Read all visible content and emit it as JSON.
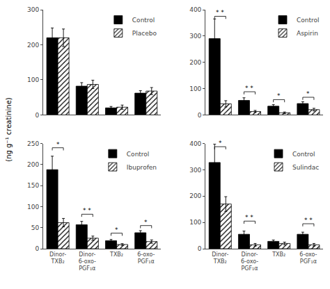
{
  "ylabel": "(ng g⁻¹ creatinine)",
  "chart_data": [
    {
      "type": "bar",
      "categories": [
        "Dinor-\nTXB₂",
        "Dinor-\n6-oxo-\nPGF₁α",
        "TXB₂",
        "6-oxo-\nPGF₁α"
      ],
      "series": [
        {
          "name": "Control",
          "color": "black",
          "values": [
            220,
            82,
            20,
            62
          ],
          "errors": [
            28,
            10,
            4,
            7
          ]
        },
        {
          "name": "Placebo",
          "color": "white",
          "values": [
            220,
            87,
            22,
            68
          ],
          "errors": [
            25,
            12,
            6,
            10
          ]
        }
      ],
      "ylim": [
        0,
        300
      ],
      "yticks": [
        0,
        100,
        200,
        300
      ],
      "grid": false,
      "legend": "upper right",
      "tick_labels": "y",
      "annotations": []
    },
    {
      "type": "bar",
      "categories": [
        "Dinor-\nTXB₂",
        "Dinor-\n6-oxo-\nPGF₁α",
        "TXB₂",
        "6-oxo-\nPGF₁α"
      ],
      "series": [
        {
          "name": "Control",
          "color": "black",
          "values": [
            290,
            55,
            33,
            43
          ],
          "errors": [
            75,
            10,
            6,
            7
          ]
        },
        {
          "name": "Aspirin",
          "color": "white",
          "values": [
            42,
            13,
            8,
            20
          ],
          "errors": [
            12,
            4,
            3,
            5
          ]
        }
      ],
      "ylim": [
        0,
        400
      ],
      "yticks": [
        0,
        100,
        200,
        300,
        400
      ],
      "grid": false,
      "legend": "upper right",
      "tick_labels": "y",
      "annotations": [
        {
          "category": "Dinor-\nTXB₂",
          "y": 375,
          "text": "* *"
        },
        {
          "category": "Dinor-\n6-oxo-\nPGF₁α",
          "y": 88,
          "text": "* *"
        },
        {
          "category": "TXB₂",
          "y": 58,
          "text": "*"
        },
        {
          "category": "6-oxo-\nPGF₁α",
          "y": 67,
          "text": "*"
        }
      ]
    },
    {
      "type": "bar",
      "categories": [
        "Dinor-\nTXB₂",
        "Dinor-\n6-oxo-\nPGF₁α",
        "TXB₂",
        "6-oxo-\nPGF₁α"
      ],
      "series": [
        {
          "name": "Control",
          "color": "black",
          "values": [
            188,
            57,
            19,
            38
          ],
          "errors": [
            32,
            8,
            3,
            5
          ]
        },
        {
          "name": "Ibuprofen",
          "color": "white",
          "values": [
            62,
            25,
            10,
            17
          ],
          "errors": [
            10,
            5,
            2,
            4
          ]
        }
      ],
      "ylim": [
        0,
        250
      ],
      "yticks": [
        0,
        50,
        100,
        150,
        200,
        250
      ],
      "grid": false,
      "legend": "upper right",
      "annotations": [
        {
          "category": "Dinor-\nTXB₂",
          "y": 240,
          "text": "*"
        },
        {
          "category": "Dinor-\n6-oxo-\nPGF₁α",
          "y": 82,
          "text": "* *"
        },
        {
          "category": "TXB₂",
          "y": 37,
          "text": "*"
        },
        {
          "category": "6-oxo-\nPGF₁α",
          "y": 55,
          "text": "*"
        }
      ]
    },
    {
      "type": "bar",
      "categories": [
        "Dinor-\nTXB₂",
        "Dinor-\n6-oxo-\nPGF₁α",
        "TXB₂",
        "6-oxo-\nPGF₁α"
      ],
      "series": [
        {
          "name": "Control",
          "color": "black",
          "values": [
            328,
            55,
            28,
            55
          ],
          "errors": [
            70,
            12,
            5,
            8
          ]
        },
        {
          "name": "Sulindac",
          "color": "white",
          "values": [
            170,
            15,
            20,
            15
          ],
          "errors": [
            28,
            5,
            5,
            5
          ]
        }
      ],
      "ylim": [
        0,
        400
      ],
      "yticks": [
        0,
        100,
        200,
        300,
        400
      ],
      "grid": false,
      "legend": "upper right",
      "annotations": [
        {
          "category": "Dinor-\nTXB₂",
          "y": 388,
          "text": "*"
        },
        {
          "category": "Dinor-\n6-oxo-\nPGF₁α",
          "y": 105,
          "text": "* *"
        },
        {
          "category": "6-oxo-\nPGF₁α",
          "y": 95,
          "text": "* *"
        }
      ]
    }
  ]
}
